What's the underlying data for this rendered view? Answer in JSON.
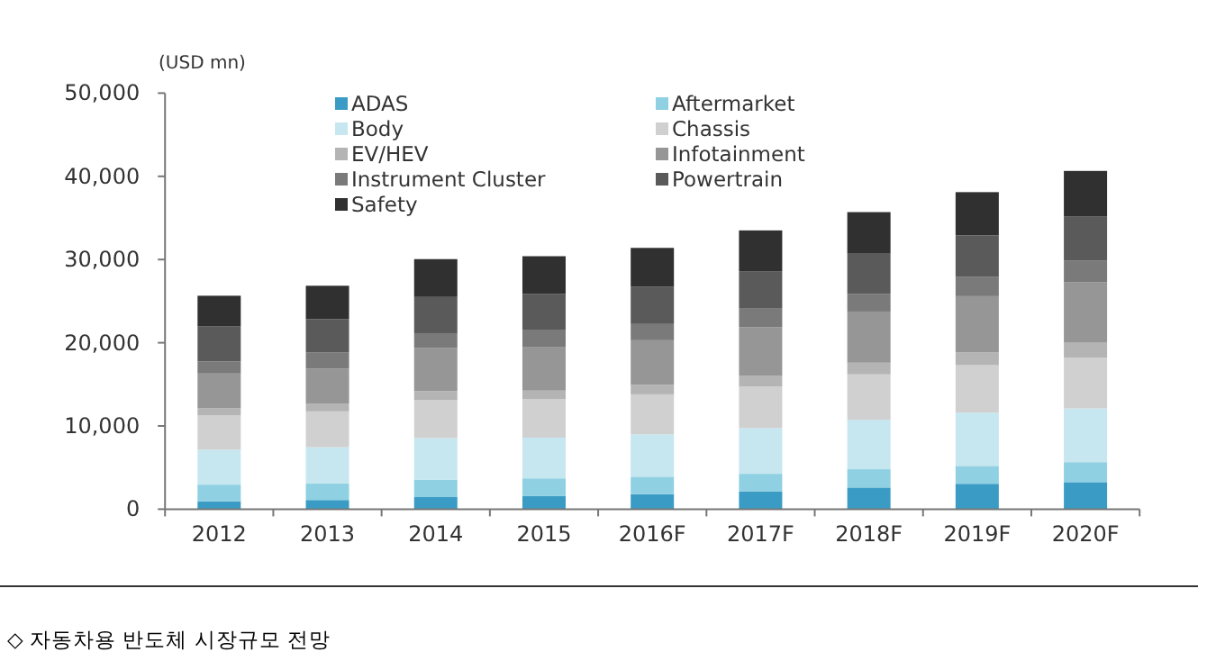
{
  "chart_data": {
    "type": "bar",
    "stacked": true,
    "ylabel": "(USD mn)",
    "categories": [
      "2012",
      "2013",
      "2014",
      "2015",
      "2016F",
      "2017F",
      "2018F",
      "2019F",
      "2020F"
    ],
    "ylim": [
      0,
      50000
    ],
    "yticks": [
      {
        "value": 0,
        "label": "0"
      },
      {
        "value": 10000,
        "label": "10,000"
      },
      {
        "value": 20000,
        "label": "20,000"
      },
      {
        "value": 30000,
        "label": "30,000"
      },
      {
        "value": 40000,
        "label": "40,000"
      },
      {
        "value": 50000,
        "label": "50,000"
      }
    ],
    "grid": false,
    "legend": "top",
    "series": [
      {
        "name": "ADAS",
        "color": "#3a9cc4",
        "values": [
          950,
          1100,
          1450,
          1600,
          1800,
          2150,
          2600,
          3050,
          3250
        ]
      },
      {
        "name": "Aftermarket",
        "color": "#8fd0e3",
        "values": [
          2000,
          2000,
          2100,
          2100,
          2100,
          2100,
          2200,
          2150,
          2400
        ]
      },
      {
        "name": "Body",
        "color": "#c6e6f0",
        "values": [
          4200,
          4350,
          5000,
          4900,
          5100,
          5500,
          5950,
          6400,
          6450
        ]
      },
      {
        "name": "Chassis",
        "color": "#d0d0d0",
        "values": [
          4150,
          4300,
          4550,
          4650,
          4800,
          5000,
          5450,
          5700,
          6100
        ]
      },
      {
        "name": "EV/HEV",
        "color": "#b4b4b4",
        "values": [
          850,
          900,
          1100,
          1000,
          1150,
          1300,
          1400,
          1550,
          1800
        ]
      },
      {
        "name": "Infotainment",
        "color": "#969696",
        "values": [
          4150,
          4250,
          5150,
          5200,
          5350,
          5800,
          6150,
          6750,
          7250
        ]
      },
      {
        "name": "Instrument Cluster",
        "color": "#7a7a7a",
        "values": [
          1450,
          1950,
          1800,
          2050,
          1950,
          2250,
          2100,
          2300,
          2600
        ]
      },
      {
        "name": "Powertrain",
        "color": "#5a5a5a",
        "values": [
          4200,
          4000,
          4350,
          4350,
          4500,
          4500,
          4850,
          5000,
          5350
        ]
      },
      {
        "name": "Safety",
        "color": "#303030",
        "values": [
          3700,
          4000,
          4550,
          4550,
          4650,
          4900,
          5000,
          5200,
          5450
        ]
      }
    ],
    "annotations": [
      "◇ 자동차용 반도체 시장규모 전망"
    ]
  }
}
